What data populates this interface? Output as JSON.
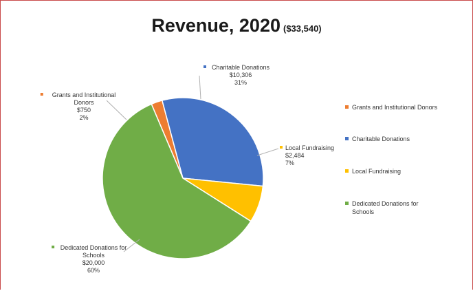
{
  "chart_data": {
    "type": "pie",
    "title": "Revenue, 2020",
    "subtitle": "($33,540)",
    "slices": [
      {
        "label": "Grants and Institutional Donors",
        "data_label_lines": [
          "Grants and Institutional",
          "Donors"
        ],
        "value_text": "$750",
        "percent_text": "2%",
        "value": 750,
        "color": "#ed7d31"
      },
      {
        "label": "Charitable Donations",
        "data_label_lines": [
          "Charitable Donations"
        ],
        "value_text": "$10,306",
        "percent_text": "31%",
        "value": 10306,
        "color": "#4472c4"
      },
      {
        "label": "Local Fundraising",
        "data_label_lines": [
          "Local Fundraising"
        ],
        "value_text": "$2,484",
        "percent_text": "7%",
        "value": 2484,
        "color": "#ffc000"
      },
      {
        "label": "Dedicated Donations for Schools",
        "data_label_lines": [
          "Dedicated Donations for",
          "Schools"
        ],
        "value_text": "$20,000",
        "percent_text": "60%",
        "value": 20000,
        "color": "#70ad47"
      }
    ],
    "legend": {
      "position": "right",
      "entries": [
        {
          "lines": [
            "Grants and Institutional Donors"
          ],
          "color": "#ed7d31"
        },
        {
          "lines": [
            "Charitable Donations"
          ],
          "color": "#4472c4"
        },
        {
          "lines": [
            "Local Fundraising"
          ],
          "color": "#ffc000"
        },
        {
          "lines": [
            "Dedicated Donations for",
            "Schools"
          ],
          "color": "#70ad47"
        }
      ]
    }
  }
}
